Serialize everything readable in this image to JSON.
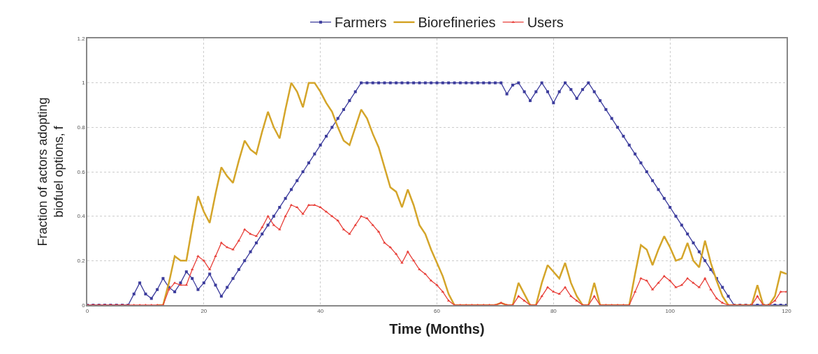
{
  "chart_data": {
    "type": "line",
    "xlabel": "Time (Months)",
    "ylabel": "Fraction of actors adopting\nbiofuel options, f",
    "x": [
      0,
      1,
      2,
      3,
      4,
      5,
      6,
      7,
      8,
      9,
      10,
      11,
      12,
      13,
      14,
      15,
      16,
      17,
      18,
      19,
      20,
      21,
      22,
      23,
      24,
      25,
      26,
      27,
      28,
      29,
      30,
      31,
      32,
      33,
      34,
      35,
      36,
      37,
      38,
      39,
      40,
      41,
      42,
      43,
      44,
      45,
      46,
      47,
      48,
      49,
      50,
      51,
      52,
      53,
      54,
      55,
      56,
      57,
      58,
      59,
      60,
      61,
      62,
      63,
      64,
      65,
      66,
      67,
      68,
      69,
      70,
      71,
      72,
      73,
      74,
      75,
      76,
      77,
      78,
      79,
      80,
      81,
      82,
      83,
      84,
      85,
      86,
      87,
      88,
      89,
      90,
      91,
      92,
      93,
      94,
      95,
      96,
      97,
      98,
      99,
      100,
      101,
      102,
      103,
      104,
      105,
      106,
      107,
      108,
      109,
      110,
      111,
      112,
      113,
      114,
      115,
      116,
      117,
      118,
      119,
      120
    ],
    "series": [
      {
        "name": "Farmers",
        "color": "#3c3c9c",
        "marker": "square",
        "values": [
          0,
          0,
          0,
          0,
          0,
          0,
          0,
          0,
          0.05,
          0.1,
          0.05,
          0.03,
          0.07,
          0.12,
          0.08,
          0.06,
          0.1,
          0.15,
          0.12,
          0.07,
          0.1,
          0.14,
          0.09,
          0.04,
          0.08,
          0.12,
          0.16,
          0.2,
          0.24,
          0.28,
          0.32,
          0.36,
          0.4,
          0.44,
          0.48,
          0.52,
          0.56,
          0.6,
          0.64,
          0.68,
          0.72,
          0.76,
          0.8,
          0.84,
          0.88,
          0.92,
          0.96,
          1,
          1,
          1,
          1,
          1,
          1,
          1,
          1,
          1,
          1,
          1,
          1,
          1,
          1,
          1,
          1,
          1,
          1,
          1,
          1,
          1,
          1,
          1,
          1,
          1,
          0.95,
          0.99,
          1,
          0.96,
          0.92,
          0.96,
          1,
          0.96,
          0.91,
          0.96,
          1,
          0.97,
          0.93,
          0.97,
          1,
          0.96,
          0.92,
          0.88,
          0.84,
          0.8,
          0.76,
          0.72,
          0.68,
          0.64,
          0.6,
          0.56,
          0.52,
          0.48,
          0.44,
          0.4,
          0.36,
          0.32,
          0.28,
          0.24,
          0.2,
          0.16,
          0.12,
          0.08,
          0.04,
          0,
          0,
          0,
          0,
          0,
          0,
          0,
          0,
          0,
          0
        ]
      },
      {
        "name": "Biorefineries",
        "color": "#d4a52a",
        "marker": "none",
        "values": [
          null,
          null,
          null,
          null,
          null,
          null,
          null,
          null,
          null,
          null,
          null,
          null,
          0,
          0,
          0.1,
          0.22,
          0.2,
          0.2,
          0.35,
          0.49,
          0.42,
          0.37,
          0.5,
          0.62,
          0.58,
          0.55,
          0.65,
          0.74,
          0.7,
          0.68,
          0.78,
          0.87,
          0.8,
          0.75,
          0.88,
          1,
          0.96,
          0.89,
          1,
          1,
          0.96,
          0.91,
          0.87,
          0.8,
          0.74,
          0.72,
          0.8,
          0.88,
          0.84,
          0.77,
          0.71,
          0.62,
          0.53,
          0.51,
          0.44,
          0.52,
          0.45,
          0.36,
          0.32,
          0.25,
          0.19,
          0.13,
          0.05,
          0,
          0,
          0,
          0,
          0,
          0,
          0,
          0,
          0.01,
          0,
          0,
          0.1,
          0.05,
          0,
          0,
          0.1,
          0.18,
          0.15,
          0.12,
          0.19,
          0.1,
          0.04,
          0,
          0,
          0.1,
          0,
          0,
          0,
          0,
          0,
          0,
          0.14,
          0.27,
          0.25,
          0.18,
          0.25,
          0.31,
          0.26,
          0.2,
          0.21,
          0.28,
          0.2,
          0.17,
          0.29,
          0.19,
          0.11,
          0.04,
          0,
          0,
          0,
          0,
          0,
          0.09,
          0,
          0,
          0.04,
          0.15,
          0.14
        ]
      },
      {
        "name": "Users",
        "color": "#e8403a",
        "marker": "triangle",
        "values": [
          0,
          0,
          0,
          0,
          0,
          0,
          0,
          0,
          0,
          0,
          0,
          0,
          0,
          0,
          0.07,
          0.1,
          0.09,
          0.09,
          0.16,
          0.22,
          0.2,
          0.16,
          0.22,
          0.28,
          0.26,
          0.25,
          0.29,
          0.34,
          0.32,
          0.31,
          0.35,
          0.4,
          0.36,
          0.34,
          0.4,
          0.45,
          0.44,
          0.41,
          0.45,
          0.45,
          0.44,
          0.42,
          0.4,
          0.38,
          0.34,
          0.32,
          0.36,
          0.4,
          0.39,
          0.36,
          0.33,
          0.28,
          0.26,
          0.23,
          0.19,
          0.24,
          0.2,
          0.16,
          0.14,
          0.11,
          0.09,
          0.06,
          0.02,
          0,
          0,
          0,
          0,
          0,
          0,
          0,
          0,
          0.01,
          0,
          0,
          0.04,
          0.02,
          0,
          0,
          0.04,
          0.08,
          0.06,
          0.05,
          0.08,
          0.04,
          0.02,
          0,
          0,
          0.04,
          0,
          0,
          0,
          0,
          0,
          0,
          0.06,
          0.12,
          0.11,
          0.07,
          0.1,
          0.13,
          0.11,
          0.08,
          0.09,
          0.12,
          0.1,
          0.08,
          0.12,
          0.07,
          0.03,
          0.01,
          0,
          0,
          0,
          0,
          0,
          0.04,
          0,
          0,
          0.02,
          0.06,
          0.06
        ]
      }
    ],
    "xlim": [
      0,
      120
    ],
    "xticks": [
      0,
      20,
      40,
      60,
      80,
      100,
      120
    ],
    "ylim": [
      0,
      1.2
    ],
    "yticks": [
      0,
      0.2,
      0.4,
      0.6,
      0.8,
      1,
      1.2
    ],
    "grid": true,
    "legend": "top",
    "line_style": "solid"
  }
}
